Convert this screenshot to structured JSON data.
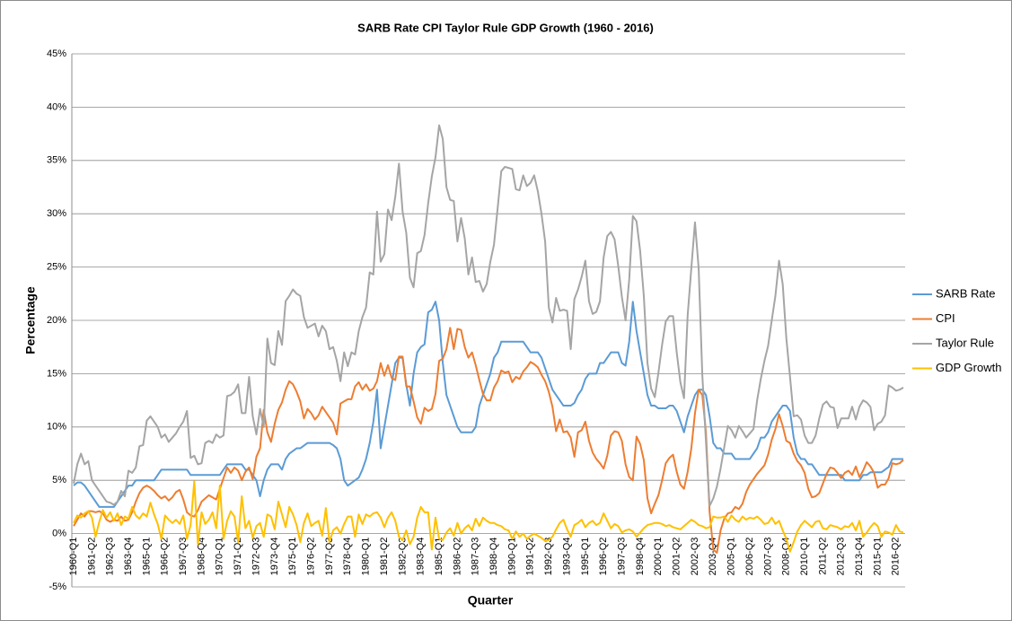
{
  "chart_data": {
    "type": "line",
    "title": "SARB Rate CPI Taylor Rule GDP Growth (1960 - 2016)",
    "x_label": "Quarter",
    "y_label": "Percentage",
    "categories": [
      "1960-Q1",
      null,
      null,
      null,
      null,
      "1961-Q2",
      null,
      null,
      null,
      null,
      "1962-Q3",
      null,
      null,
      null,
      null,
      "1963-Q4",
      null,
      null,
      null,
      null,
      "1965-Q1",
      null,
      null,
      null,
      null,
      "1966-Q2",
      null,
      null,
      null,
      null,
      "1967-Q3",
      null,
      null,
      null,
      null,
      "1968-Q4",
      null,
      null,
      null,
      null,
      "1970-Q1",
      null,
      null,
      null,
      null,
      "1971-Q2",
      null,
      null,
      null,
      null,
      "1972-Q3",
      null,
      null,
      null,
      null,
      "1973-Q4",
      null,
      null,
      null,
      null,
      "1975-Q1",
      null,
      null,
      null,
      null,
      "1976-Q2",
      null,
      null,
      null,
      null,
      "1977-Q3",
      null,
      null,
      null,
      null,
      "1978-Q4",
      null,
      null,
      null,
      null,
      "1980-Q1",
      null,
      null,
      null,
      null,
      "1981-Q2",
      null,
      null,
      null,
      null,
      "1982-Q3",
      null,
      null,
      null,
      null,
      "1983-Q4",
      null,
      null,
      null,
      null,
      "1985-Q1",
      null,
      null,
      null,
      null,
      "1986-Q2",
      null,
      null,
      null,
      null,
      "1987-Q3",
      null,
      null,
      null,
      null,
      "1988-Q4",
      null,
      null,
      null,
      null,
      "1990-Q1",
      null,
      null,
      null,
      null,
      "1991-Q2",
      null,
      null,
      null,
      null,
      "1992-Q3",
      null,
      null,
      null,
      null,
      "1993-Q4",
      null,
      null,
      null,
      null,
      "1995-Q1",
      null,
      null,
      null,
      null,
      "1996-Q2",
      null,
      null,
      null,
      null,
      "1997-Q3",
      null,
      null,
      null,
      null,
      "1998-Q4",
      null,
      null,
      null,
      null,
      "2000-Q1",
      null,
      null,
      null,
      null,
      "2001-Q2",
      null,
      null,
      null,
      null,
      "2002-Q3",
      null,
      null,
      null,
      null,
      "2003-Q4",
      null,
      null,
      null,
      null,
      "2005-Q1",
      null,
      null,
      null,
      null,
      "2006-Q2",
      null,
      null,
      null,
      null,
      "2007-Q3",
      null,
      null,
      null,
      null,
      "2008-Q4",
      null,
      null,
      null,
      null,
      "2010-Q1",
      null,
      null,
      null,
      null,
      "2011-Q2",
      null,
      null,
      null,
      null,
      "2012-Q3",
      null,
      null,
      null,
      null,
      "2013-Q4",
      null,
      null,
      null,
      null,
      "2015-Q1",
      null,
      null,
      null,
      null,
      "2016-Q2",
      null,
      null
    ],
    "series": [
      {
        "name": "SARB Rate",
        "color": "#5b9bd5",
        "values": [
          4.5,
          4.8,
          4.8,
          4.5,
          4.0,
          3.5,
          3.0,
          2.5,
          2.5,
          2.5,
          2.5,
          2.5,
          3.0,
          3.5,
          4.0,
          4.5,
          4.5,
          5,
          5,
          5,
          5,
          5,
          5,
          5.5,
          6,
          6,
          6,
          6,
          6,
          6,
          6,
          6,
          5.5,
          5.5,
          5.5,
          5.5,
          5.5,
          5.5,
          5.5,
          5.5,
          5.5,
          6,
          6.5,
          6.5,
          6.5,
          6.5,
          6.5,
          6,
          6,
          5.5,
          5,
          3.5,
          5,
          6,
          6.5,
          6.5,
          6.5,
          6,
          7,
          7.5,
          7.75,
          8,
          8,
          8.25,
          8.5,
          8.5,
          8.5,
          8.5,
          8.5,
          8.5,
          8.5,
          8.3,
          8,
          7,
          5,
          4.5,
          4.75,
          5,
          5.25,
          6,
          7,
          8.5,
          10.5,
          13.5,
          8,
          10,
          12,
          14,
          16,
          16.5,
          16.5,
          14,
          12,
          15,
          17,
          17.5,
          17.75,
          20.75,
          21,
          21.75,
          20,
          16,
          13,
          12,
          11,
          10,
          9.5,
          9.5,
          9.5,
          9.5,
          10,
          12,
          13,
          14,
          15,
          16.5,
          17,
          18,
          18,
          18,
          18,
          18,
          18,
          18,
          17.5,
          17,
          17,
          17,
          16.5,
          15.5,
          14.5,
          13.5,
          13,
          12.5,
          12,
          12,
          12,
          12.25,
          13,
          13.5,
          14.5,
          15,
          15,
          15,
          16,
          16,
          16.5,
          17,
          17,
          17,
          16,
          15.75,
          18,
          21.75,
          19,
          17,
          15,
          13,
          12,
          12,
          11.75,
          11.75,
          11.75,
          12,
          12,
          11.5,
          10.5,
          9.5,
          11,
          12,
          13,
          13.5,
          13.5,
          13,
          11,
          8.5,
          8,
          8,
          7.5,
          7.5,
          7.5,
          7,
          7,
          7,
          7,
          7,
          7.5,
          8,
          9,
          9,
          9.5,
          10.5,
          11,
          11.5,
          12,
          12,
          11.5,
          9,
          7.5,
          7,
          7,
          6.5,
          6.5,
          6,
          5.5,
          5.5,
          5.5,
          5.5,
          5.5,
          5.5,
          5.5,
          5,
          5,
          5,
          5,
          5,
          5.5,
          5.5,
          5.75,
          5.75,
          5.75,
          5.75,
          6,
          6.25,
          7,
          7,
          7,
          7
        ]
      },
      {
        "name": "CPI",
        "color": "#ed7d31",
        "values": [
          0.7,
          1.3,
          1.9,
          1.6,
          2.1,
          2.1,
          2.0,
          2.1,
          1.9,
          1.3,
          1.1,
          1.3,
          1.2,
          1.6,
          1.2,
          1.3,
          2.0,
          3.0,
          3.8,
          4.3,
          4.5,
          4.3,
          4.0,
          3.6,
          3.3,
          3.5,
          3.1,
          3.4,
          3.9,
          4.1,
          3.2,
          2.0,
          1.7,
          1.6,
          2.2,
          3.0,
          3.3,
          3.6,
          3.4,
          3.2,
          4.2,
          5.2,
          6.2,
          5.7,
          6.2,
          5.9,
          5.0,
          5.8,
          6.2,
          5.1,
          7.2,
          8.0,
          11.6,
          9.5,
          8.6,
          10.3,
          11.6,
          12.3,
          13.5,
          14.3,
          14,
          13.3,
          12.4,
          10.8,
          11.7,
          11.3,
          10.7,
          11.1,
          11.9,
          11.4,
          10.9,
          10.4,
          9.3,
          12.2,
          12.4,
          12.6,
          12.6,
          13.8,
          14.2,
          13.5,
          14.0,
          13.4,
          13.6,
          14.3,
          16.0,
          14.8,
          15.8,
          14.6,
          14.4,
          16.6,
          16.6,
          13.8,
          13.8,
          12.4,
          10.9,
          10.3,
          11.8,
          11.5,
          11.7,
          13.1,
          16.2,
          16.4,
          17.3,
          19.3,
          17.3,
          19.2,
          19.1,
          17.5,
          16.5,
          17.0,
          15.8,
          14.4,
          13.1,
          12.5,
          12.5,
          13.7,
          14.3,
          15.3,
          15.1,
          15.2,
          14.2,
          14.7,
          14.5,
          15.2,
          15.6,
          16.1,
          15.9,
          15.6,
          14.9,
          14.3,
          13.3,
          11.9,
          9.6,
          10.7,
          9.5,
          9.6,
          9.0,
          7.2,
          9.5,
          9.7,
          10.5,
          8.7,
          7.6,
          7.0,
          6.6,
          6.1,
          7.3,
          9.2,
          9.6,
          9.5,
          8.7,
          6.5,
          5.3,
          5.0,
          9.1,
          8.4,
          6.9,
          3.3,
          1.9,
          2.8,
          3.6,
          5.0,
          6.6,
          7.1,
          7.4,
          5.8,
          4.6,
          4.2,
          5.8,
          8.0,
          11.3,
          13.5,
          13.0,
          9.5,
          2.0,
          -1.5,
          -1.8,
          0.3,
          1.4,
          1.9,
          2.0,
          2.5,
          2.3,
          2.8,
          3.9,
          4.6,
          5.1,
          5.6,
          6.0,
          6.4,
          7.4,
          8.8,
          9.8,
          11.2,
          10.1,
          8.7,
          8.5,
          7.5,
          6.8,
          6.4,
          5.7,
          4.2,
          3.4,
          3.5,
          3.8,
          4.7,
          5.6,
          6.2,
          6.1,
          5.7,
          5.2,
          5.7,
          5.9,
          5.5,
          6.3,
          5.3,
          5.9,
          6.7,
          6.3,
          5.7,
          4.3,
          4.6,
          4.6,
          5.2,
          6.6,
          6.5,
          6.6,
          6.9
        ]
      },
      {
        "name": "Taylor Rule",
        "color": "#a5a5a5",
        "values": [
          4.7,
          6.5,
          7.5,
          6.5,
          6.8,
          5.0,
          4.5,
          4.0,
          3.5,
          3.0,
          2.9,
          2.7,
          3.0,
          4.0,
          3.5,
          5.9,
          5.7,
          6.2,
          8.2,
          8.3,
          10.6,
          11.0,
          10.5,
          10.0,
          9.0,
          9.3,
          8.6,
          9.0,
          9.4,
          10.0,
          10.5,
          11.5,
          7.1,
          7.3,
          6.5,
          6.6,
          8.5,
          8.7,
          8.5,
          9.3,
          9.0,
          9.2,
          12.9,
          13.0,
          13.3,
          14.0,
          11.3,
          11.3,
          14.7,
          11.0,
          9.3,
          11.7,
          10.0,
          18.3,
          16.0,
          15.8,
          19.0,
          17.7,
          21.8,
          22.3,
          22.9,
          22.5,
          22.3,
          20.3,
          19.3,
          19.5,
          19.7,
          18.5,
          19.5,
          19.0,
          17.3,
          17.5,
          16.2,
          14.3,
          17.0,
          15.7,
          17.0,
          16.8,
          19.0,
          20.3,
          21.2,
          24.5,
          24.3,
          30.2,
          25.5,
          26.2,
          30.4,
          29.4,
          31.6,
          34.7,
          30.2,
          28.2,
          24.0,
          23.1,
          26.3,
          26.5,
          28.0,
          31.0,
          33.5,
          35.3,
          38.3,
          37.0,
          32.5,
          31.3,
          31.2,
          27.4,
          29.6,
          27.7,
          24.3,
          25.9,
          23.6,
          23.7,
          22.7,
          23.4,
          25.5,
          27.1,
          30.5,
          34.0,
          34.4,
          34.3,
          34.2,
          32.3,
          32.2,
          33.6,
          32.6,
          32.9,
          33.6,
          32.1,
          30.0,
          27.4,
          21.2,
          19.8,
          22.1,
          20.9,
          21.0,
          20.9,
          17.3,
          22.0,
          22.9,
          24.1,
          25.6,
          21.8,
          20.6,
          20.8,
          21.8,
          25.9,
          27.9,
          28.3,
          27.6,
          25.1,
          22.2,
          20.0,
          23.8,
          29.8,
          29.3,
          26.5,
          22.3,
          16.0,
          13.6,
          12.8,
          15.1,
          17.7,
          19.9,
          20.4,
          20.4,
          17.0,
          14.2,
          12.7,
          20.5,
          24.9,
          29.2,
          24.9,
          14.9,
          8.6,
          2.6,
          3.3,
          4.4,
          6.1,
          8.1,
          10.1,
          9.7,
          9.0,
          10.1,
          9.6,
          9.0,
          9.4,
          9.8,
          12.5,
          14.5,
          16.2,
          17.6,
          20.0,
          22.3,
          25.6,
          23.4,
          18.3,
          14.7,
          11.0,
          11.1,
          10.7,
          9.2,
          8.5,
          8.5,
          9.2,
          10.8,
          12.1,
          12.4,
          11.9,
          11.8,
          9.9,
          10.8,
          10.8,
          10.8,
          11.9,
          10.7,
          11.9,
          12.5,
          12.3,
          11.9,
          9.7,
          10.3,
          10.5,
          11.1,
          13.9,
          13.7,
          13.4,
          13.5,
          13.7
        ]
      },
      {
        "name": "GDP Growth",
        "color": "#ffc000",
        "values": [
          1.0,
          1.7,
          1.5,
          1.9,
          2.1,
          1.5,
          -0.3,
          1.1,
          2.2,
          1.5,
          2.0,
          1.2,
          1.9,
          0.8,
          1.6,
          1.4,
          2.5,
          1.7,
          1.4,
          1.9,
          1.6,
          2.9,
          1.8,
          0.9,
          -0.5,
          1.7,
          1.3,
          1.0,
          1.3,
          0.9,
          1.7,
          -0.5,
          0.8,
          4.9,
          -1.0,
          2.0,
          0.9,
          1.3,
          2.0,
          0.5,
          4.5,
          -0.5,
          1.2,
          2.1,
          1.6,
          -0.8,
          3.5,
          0.5,
          1.2,
          -0.4,
          0.7,
          1.0,
          -0.3,
          1.8,
          1.6,
          0.4,
          3.0,
          1.8,
          0.6,
          2.5,
          1.8,
          0.8,
          -0.8,
          1.0,
          1.9,
          0.7,
          1.0,
          1.2,
          -0.2,
          2.4,
          -0.8,
          0.3,
          0.6,
          0.0,
          0.9,
          1.6,
          1.6,
          -0.3,
          1.8,
          0.9,
          1.8,
          1.6,
          1.9,
          2.0,
          1.5,
          0.6,
          1.5,
          2.0,
          1.2,
          -0.3,
          -0.6,
          0.3,
          -1.0,
          -0.3,
          1.5,
          2.5,
          2.0,
          2.0,
          -1.5,
          1.5,
          -0.5,
          -0.6,
          0.1,
          0.5,
          -0.2,
          1.0,
          0.0,
          0.5,
          0.8,
          0.3,
          1.4,
          0.7,
          1.5,
          1.2,
          1.0,
          1.0,
          0.8,
          0.7,
          0.4,
          0.3,
          -0.5,
          0.2,
          -0.3,
          0.0,
          -0.5,
          -0.2,
          0.0,
          -0.2,
          -0.4,
          -0.7,
          -0.6,
          -0.3,
          0.4,
          1.0,
          1.3,
          0.4,
          -0.3,
          0.8,
          1.0,
          1.3,
          0.6,
          1.0,
          1.2,
          0.8,
          1.0,
          1.9,
          1.2,
          0.5,
          0.9,
          0.7,
          0.1,
          0.3,
          0.4,
          0.2,
          -0.3,
          0.1,
          0.5,
          0.8,
          0.9,
          1.0,
          1.0,
          0.9,
          0.7,
          0.8,
          0.6,
          0.5,
          0.4,
          0.7,
          1.0,
          1.3,
          1.1,
          0.8,
          0.7,
          0.5,
          0.6,
          1.6,
          1.5,
          1.5,
          1.6,
          1.1,
          1.7,
          1.3,
          1.1,
          1.6,
          1.3,
          1.5,
          1.4,
          1.6,
          1.3,
          0.9,
          1.0,
          1.5,
          0.9,
          1.2,
          0.3,
          -0.5,
          -1.7,
          -0.8,
          0.2,
          0.8,
          1.2,
          0.9,
          0.6,
          1.1,
          1.2,
          0.5,
          0.4,
          0.8,
          0.7,
          0.6,
          0.4,
          0.7,
          0.6,
          1.0,
          0.3,
          1.2,
          -0.3,
          0.1,
          0.6,
          1.0,
          0.7,
          -0.3,
          0.2,
          0.1,
          -0.1,
          0.8,
          0.2,
          0.1
        ]
      }
    ],
    "ylim": [
      -5,
      45
    ],
    "yticks": [
      {
        "value": -5,
        "label": "-5%"
      },
      {
        "value": 0,
        "label": "0%"
      },
      {
        "value": 5,
        "label": "5%"
      },
      {
        "value": 10,
        "label": "10%"
      },
      {
        "value": 15,
        "label": "15%"
      },
      {
        "value": 20,
        "label": "20%"
      },
      {
        "value": 25,
        "label": "25%"
      },
      {
        "value": 30,
        "label": "30%"
      },
      {
        "value": 35,
        "label": "35%"
      },
      {
        "value": 40,
        "label": "40%"
      },
      {
        "value": 45,
        "label": "45%"
      }
    ],
    "grid": true,
    "legend": "right"
  }
}
